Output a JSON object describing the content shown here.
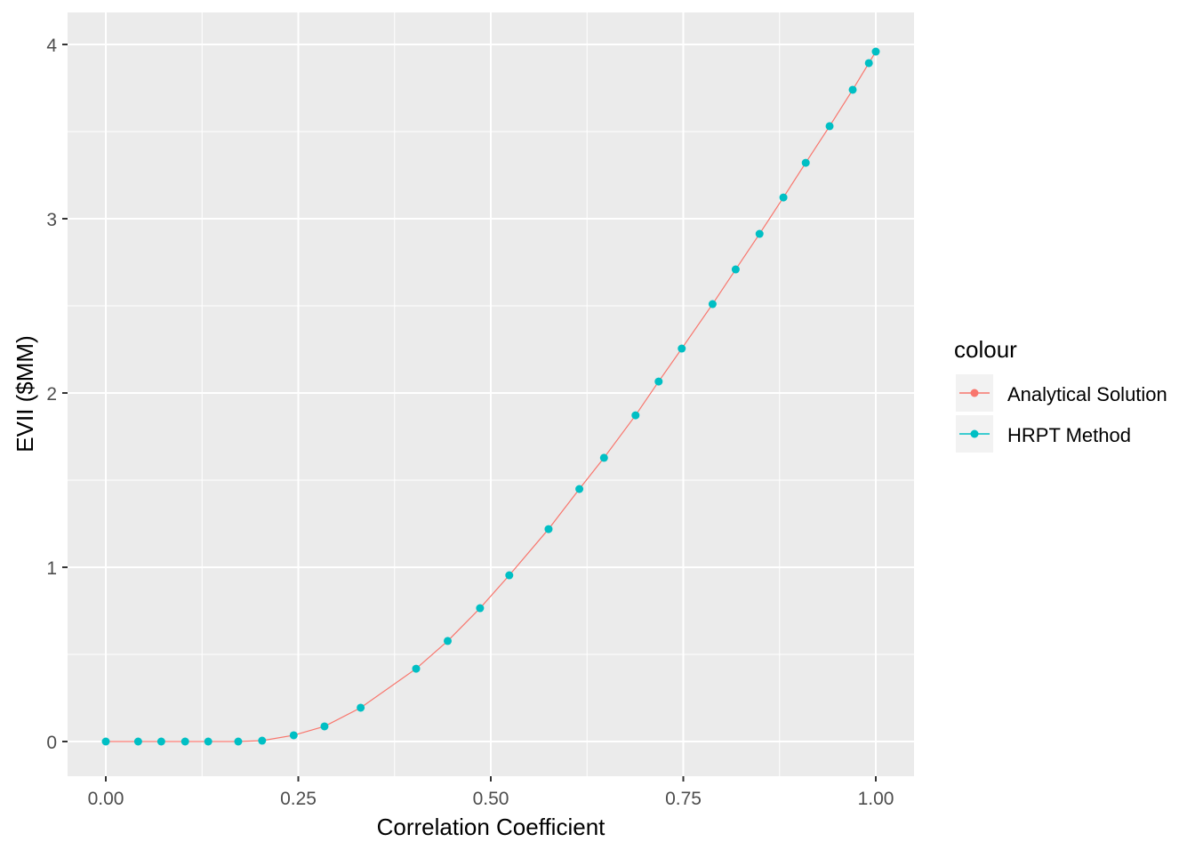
{
  "chart_data": {
    "type": "line",
    "title": "",
    "xlabel": "Correlation Coefficient",
    "ylabel": "EVII ($MM)",
    "xlim": [
      -0.1,
      1.05
    ],
    "ylim": [
      -0.19,
      4.18
    ],
    "x_ticks": [
      0,
      0.25,
      0.5,
      0.75,
      1.0
    ],
    "x_tick_labels": [
      "0.00",
      "0.25",
      "0.50",
      "0.75",
      "1.00"
    ],
    "y_ticks": [
      0,
      1,
      2,
      3,
      4
    ],
    "y_tick_labels": [
      "0",
      "1",
      "2",
      "3",
      "4"
    ],
    "grid": true,
    "legend": {
      "title": "colour",
      "placement": "right"
    },
    "x": [
      0,
      0.042,
      0.072,
      0.103,
      0.133,
      0.172,
      0.203,
      0.244,
      0.284,
      0.331,
      0.403,
      0.444,
      0.486,
      0.524,
      0.575,
      0.615,
      0.647,
      0.688,
      0.718,
      0.748,
      0.788,
      0.818,
      0.849,
      0.88,
      0.909,
      0.94,
      0.97,
      0.991,
      1.0
    ],
    "series": [
      {
        "name": "Analytical Solution",
        "color": "#F8766D",
        "style": "line",
        "values": [
          0,
          0,
          0,
          0,
          0,
          0,
          0.005,
          0.036,
          0.087,
          0.194,
          0.418,
          0.577,
          0.765,
          0.954,
          1.219,
          1.449,
          1.628,
          1.872,
          2.066,
          2.255,
          2.51,
          2.709,
          2.913,
          3.122,
          3.321,
          3.531,
          3.74,
          3.893,
          3.959
        ]
      },
      {
        "name": "HRPT Method",
        "color": "#00BFC4",
        "style": "points",
        "values": [
          0,
          0,
          0,
          0,
          0,
          0,
          0.005,
          0.036,
          0.087,
          0.194,
          0.418,
          0.577,
          0.765,
          0.954,
          1.219,
          1.449,
          1.628,
          1.872,
          2.066,
          2.255,
          2.51,
          2.709,
          2.913,
          3.122,
          3.321,
          3.531,
          3.74,
          3.893,
          3.959
        ]
      }
    ]
  }
}
